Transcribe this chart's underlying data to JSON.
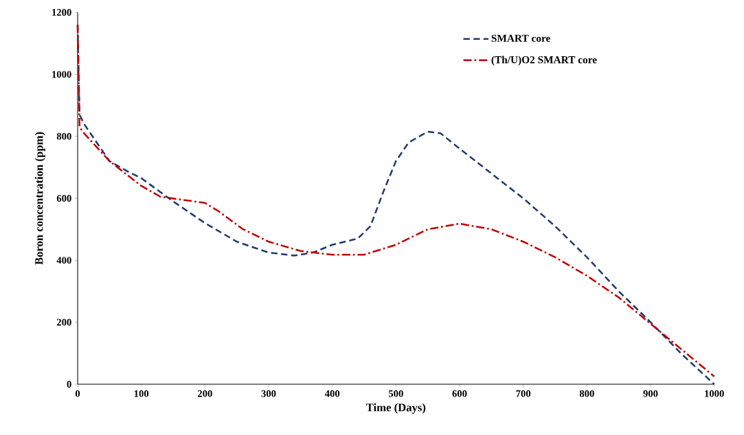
{
  "chart_data": {
    "type": "line",
    "xlabel": "Time (Days)",
    "ylabel": "Boron  concentration (ppm)",
    "xlim": [
      0,
      1000
    ],
    "ylim": [
      0,
      1200
    ],
    "xticks": [
      0,
      100,
      200,
      300,
      400,
      500,
      600,
      700,
      800,
      900,
      1000
    ],
    "yticks": [
      0,
      200,
      400,
      600,
      800,
      1000,
      1200
    ],
    "legend": "top right",
    "grid": false,
    "marker": "none",
    "series": [
      {
        "name": "SMART core",
        "color": "#1f3a6e",
        "line_style": "dashed",
        "x": [
          0,
          3,
          10,
          30,
          50,
          80,
          100,
          150,
          200,
          250,
          300,
          340,
          370,
          400,
          440,
          460,
          480,
          500,
          520,
          550,
          570,
          600,
          650,
          700,
          750,
          800,
          850,
          900,
          950,
          1000
        ],
        "values": [
          1160,
          870,
          840,
          780,
          720,
          685,
          665,
          590,
          520,
          460,
          425,
          415,
          425,
          450,
          470,
          510,
          620,
          720,
          780,
          815,
          810,
          760,
          680,
          600,
          510,
          410,
          300,
          200,
          95,
          0
        ]
      },
      {
        "name": "(Th/U)O2 SMART core",
        "color": "#c00000",
        "line_style": "dashdot",
        "x": [
          0,
          3,
          10,
          50,
          100,
          130,
          200,
          220,
          260,
          300,
          350,
          400,
          450,
          500,
          550,
          600,
          650,
          700,
          750,
          800,
          850,
          900,
          950,
          1000
        ],
        "values": [
          1160,
          830,
          810,
          720,
          640,
          605,
          585,
          560,
          500,
          460,
          430,
          418,
          418,
          450,
          500,
          518,
          500,
          460,
          410,
          350,
          280,
          195,
          110,
          25
        ]
      }
    ]
  }
}
